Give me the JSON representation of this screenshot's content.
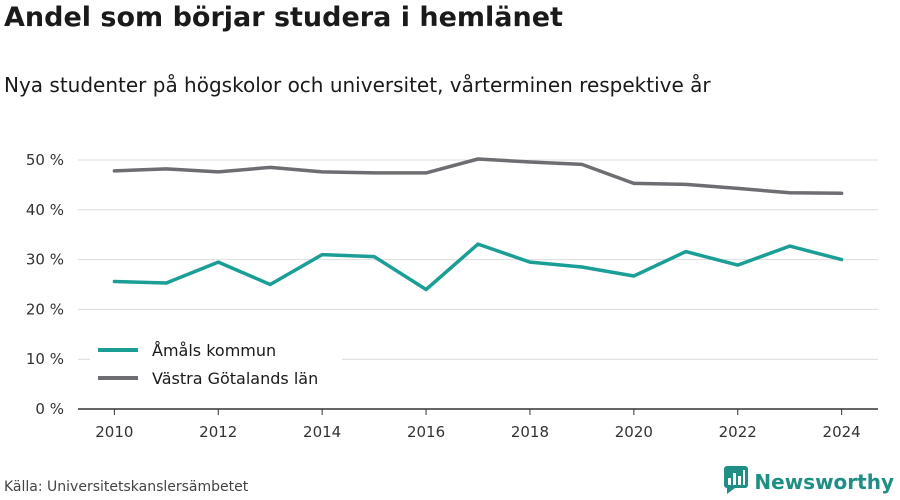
{
  "header": {
    "title": "Andel som börjar studera i hemlänet",
    "subtitle": "Nya studenter på högskolor och universitet, vårterminen respektive år"
  },
  "footer": {
    "source": "Källa: Universitetskanslersämbetet",
    "brand": "Newsworthy",
    "brand_icon": "bar-chart-logo-icon",
    "brand_color": "#1f8f86"
  },
  "chart_data": {
    "type": "line",
    "x": [
      2010,
      2011,
      2012,
      2013,
      2014,
      2015,
      2016,
      2017,
      2018,
      2019,
      2020,
      2021,
      2022,
      2023,
      2024
    ],
    "x_ticks": [
      2010,
      2012,
      2014,
      2016,
      2018,
      2020,
      2022,
      2024
    ],
    "y_ticks": [
      0,
      10,
      20,
      30,
      40,
      50
    ],
    "y_tick_labels": [
      "0 %",
      "10 %",
      "20 %",
      "30 %",
      "40 %",
      "50 %"
    ],
    "ylim": [
      0,
      52
    ],
    "xlim": [
      2009.3,
      2024.7
    ],
    "grid": "horizontal",
    "legend_position": "bottom-left",
    "series": [
      {
        "name": "Åmåls kommun",
        "color": "#1a9e96",
        "values": [
          25.6,
          25.3,
          29.5,
          25.0,
          31.0,
          30.6,
          24.0,
          33.1,
          29.5,
          28.5,
          26.7,
          31.6,
          28.9,
          32.7,
          30.0
        ]
      },
      {
        "name": "Västra Götalands län",
        "color": "#6e6d72",
        "values": [
          47.8,
          48.2,
          47.6,
          48.5,
          47.6,
          47.4,
          47.4,
          50.2,
          49.6,
          49.1,
          45.3,
          45.1,
          44.3,
          43.4,
          43.3
        ]
      }
    ]
  }
}
